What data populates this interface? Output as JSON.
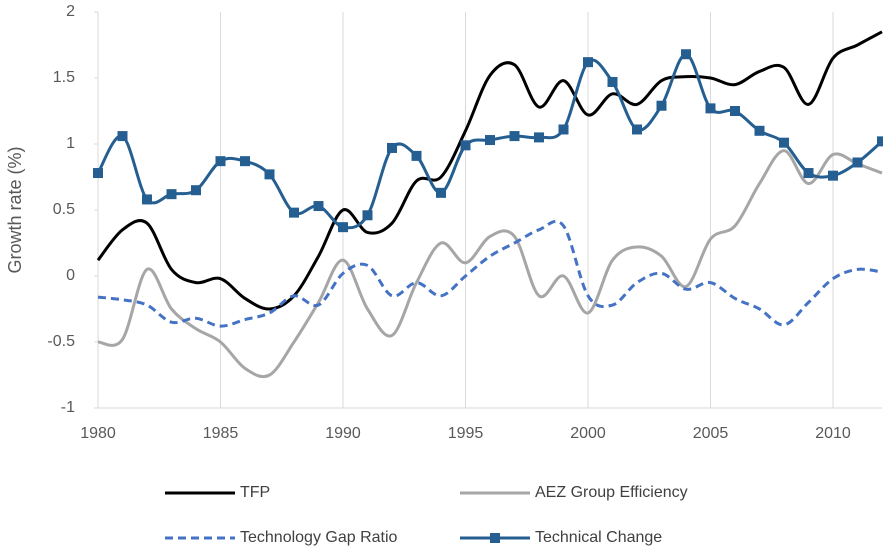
{
  "chart_data": {
    "type": "line",
    "y_label": "Growth rate (%)",
    "x": [
      1980,
      1981,
      1982,
      1983,
      1984,
      1985,
      1986,
      1987,
      1988,
      1989,
      1990,
      1991,
      1992,
      1993,
      1994,
      1995,
      1996,
      1997,
      1998,
      1999,
      2000,
      2001,
      2002,
      2003,
      2004,
      2005,
      2006,
      2007,
      2008,
      2009,
      2010,
      2011,
      2012
    ],
    "xlim": [
      1980,
      2012
    ],
    "xticks": [
      1980,
      1985,
      1990,
      1995,
      2000,
      2005,
      2010
    ],
    "ylim": [
      -1,
      2
    ],
    "yticks": [
      -1,
      -0.5,
      0,
      0.5,
      1,
      1.5,
      2
    ],
    "grid": "x",
    "smooth": true,
    "series": [
      {
        "name": "TFP",
        "color": "#000000",
        "dash": "solid",
        "marker": "none",
        "values": [
          0.12,
          0.35,
          0.4,
          0.05,
          -0.05,
          -0.02,
          -0.17,
          -0.25,
          -0.15,
          0.15,
          0.5,
          0.33,
          0.4,
          0.72,
          0.75,
          1.1,
          1.52,
          1.6,
          1.28,
          1.48,
          1.22,
          1.38,
          1.3,
          1.48,
          1.51,
          1.5,
          1.45,
          1.55,
          1.58,
          1.3,
          1.65,
          1.75,
          1.85
        ]
      },
      {
        "name": "AEZ Group Efficiency",
        "color": "#a6a6a6",
        "dash": "solid",
        "marker": "none",
        "values": [
          -0.5,
          -0.48,
          0.05,
          -0.25,
          -0.4,
          -0.5,
          -0.7,
          -0.75,
          -0.5,
          -0.2,
          0.12,
          -0.25,
          -0.45,
          -0.05,
          0.25,
          0.1,
          0.3,
          0.3,
          -0.15,
          0.0,
          -0.28,
          0.12,
          0.22,
          0.15,
          -0.08,
          0.28,
          0.38,
          0.7,
          0.95,
          0.7,
          0.92,
          0.85,
          0.78
        ]
      },
      {
        "name": "Technology Gap Ratio",
        "color": "#4472c4",
        "dash": "dashed",
        "marker": "none",
        "values": [
          -0.16,
          -0.18,
          -0.22,
          -0.35,
          -0.32,
          -0.38,
          -0.33,
          -0.28,
          -0.15,
          -0.22,
          0.02,
          0.08,
          -0.15,
          -0.05,
          -0.15,
          0.0,
          0.15,
          0.25,
          0.35,
          0.38,
          -0.15,
          -0.22,
          -0.05,
          0.02,
          -0.1,
          -0.05,
          -0.17,
          -0.25,
          -0.37,
          -0.2,
          -0.02,
          0.05,
          0.03
        ]
      },
      {
        "name": "Technical Change",
        "color": "#255e91",
        "dash": "solid",
        "marker": "square",
        "values": [
          0.78,
          1.06,
          0.58,
          0.62,
          0.65,
          0.87,
          0.87,
          0.77,
          0.48,
          0.53,
          0.37,
          0.46,
          0.97,
          0.91,
          0.63,
          0.99,
          1.03,
          1.06,
          1.05,
          1.11,
          1.62,
          1.47,
          1.11,
          1.29,
          1.68,
          1.27,
          1.25,
          1.1,
          1.01,
          0.78,
          0.76,
          0.86,
          1.02
        ]
      }
    ]
  }
}
